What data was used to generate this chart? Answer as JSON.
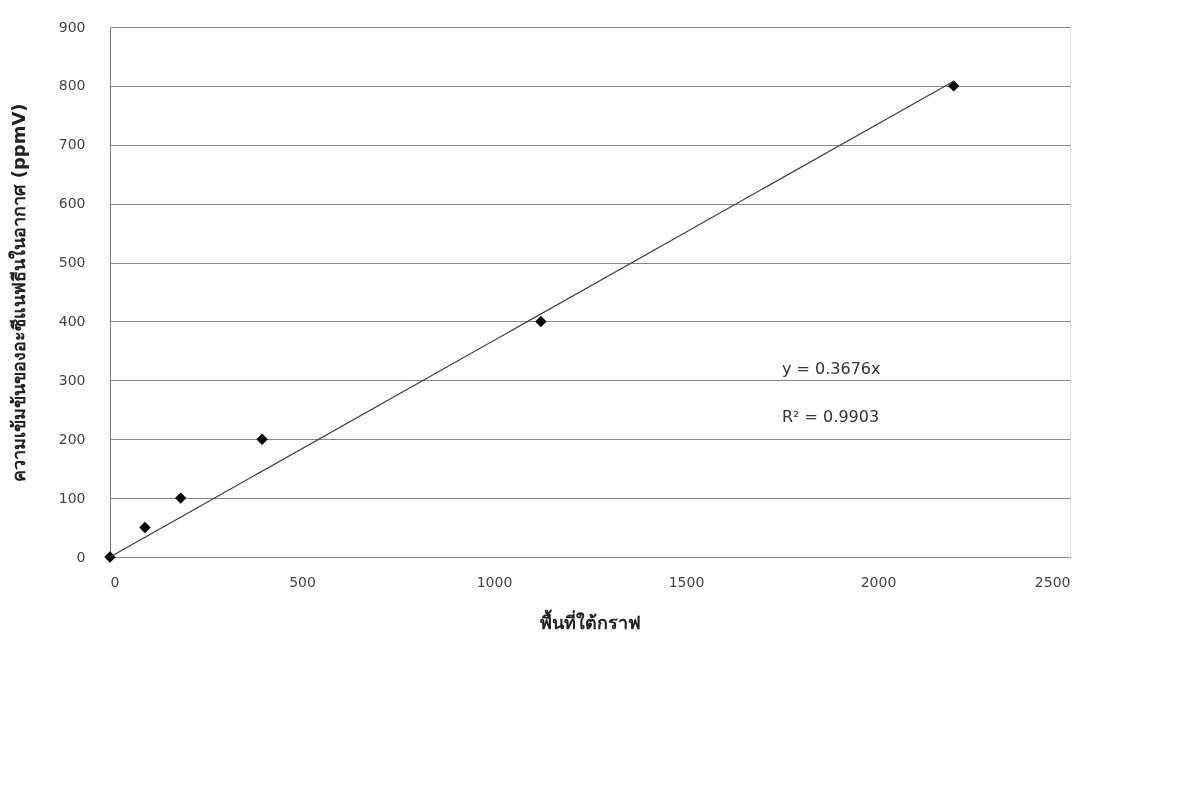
{
  "chart_data": {
    "type": "scatter",
    "xlabel": "พื้นที่ใต้กราฟ",
    "ylabel": "ความเข้มข้นของอะซีแนฟธีนในอากาศ (ppmV)",
    "x": [
      0,
      91,
      184,
      396,
      1122,
      2197
    ],
    "series": [
      {
        "color": "#000000",
        "values": [
          0,
          50,
          100,
          200,
          400,
          800
        ],
        "marker": "diamond"
      },
      {
        "type": "line",
        "color": "#404040",
        "x": [
          0,
          2197
        ],
        "values": [
          0,
          808
        ],
        "marker": "none"
      }
    ],
    "annotations": [
      "y = 0.3676x",
      "R² = 0.9903"
    ],
    "xlim": [
      0,
      2500
    ],
    "xticks": [
      0,
      500,
      1000,
      1500,
      2000,
      2500
    ],
    "ylim": [
      0,
      900
    ],
    "yticks": [
      0,
      100,
      200,
      300,
      400,
      500,
      600,
      700,
      800,
      900
    ],
    "grid": "y"
  }
}
